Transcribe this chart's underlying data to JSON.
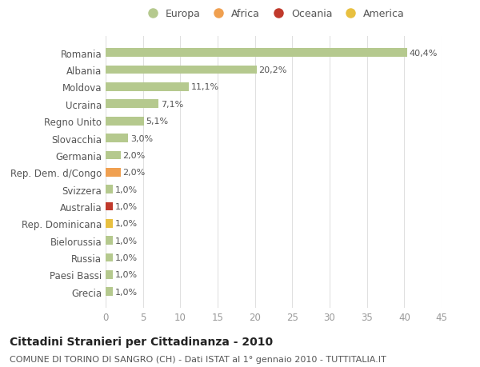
{
  "categories": [
    "Grecia",
    "Paesi Bassi",
    "Russia",
    "Bielorussia",
    "Rep. Dominicana",
    "Australia",
    "Svizzera",
    "Rep. Dem. d/Congo",
    "Germania",
    "Slovacchia",
    "Regno Unito",
    "Ucraina",
    "Moldova",
    "Albania",
    "Romania"
  ],
  "values": [
    1.0,
    1.0,
    1.0,
    1.0,
    1.0,
    1.0,
    1.0,
    2.0,
    2.0,
    3.0,
    5.1,
    7.1,
    11.1,
    20.2,
    40.4
  ],
  "bar_colors": [
    "#b5c98e",
    "#b5c98e",
    "#b5c98e",
    "#b5c98e",
    "#e8c040",
    "#c0392b",
    "#b5c98e",
    "#f0a050",
    "#b5c98e",
    "#b5c98e",
    "#b5c98e",
    "#b5c98e",
    "#b5c98e",
    "#b5c98e",
    "#b5c98e"
  ],
  "labels": [
    "1,0%",
    "1,0%",
    "1,0%",
    "1,0%",
    "1,0%",
    "1,0%",
    "1,0%",
    "2,0%",
    "2,0%",
    "3,0%",
    "5,1%",
    "7,1%",
    "11,1%",
    "20,2%",
    "40,4%"
  ],
  "legend_items": [
    {
      "label": "Europa",
      "color": "#b5c98e"
    },
    {
      "label": "Africa",
      "color": "#f0a050"
    },
    {
      "label": "Oceania",
      "color": "#c0392b"
    },
    {
      "label": "America",
      "color": "#e8c040"
    }
  ],
  "title": "Cittadini Stranieri per Cittadinanza - 2010",
  "subtitle": "COMUNE DI TORINO DI SANGRO (CH) - Dati ISTAT al 1° gennaio 2010 - TUTTITALIA.IT",
  "xlim": [
    0,
    45
  ],
  "xticks": [
    0,
    5,
    10,
    15,
    20,
    25,
    30,
    35,
    40,
    45
  ],
  "background_color": "#ffffff",
  "grid_color": "#e0e0e0",
  "bar_height": 0.5,
  "title_fontsize": 10,
  "subtitle_fontsize": 8,
  "label_fontsize": 8,
  "tick_fontsize": 8.5,
  "legend_fontsize": 9
}
